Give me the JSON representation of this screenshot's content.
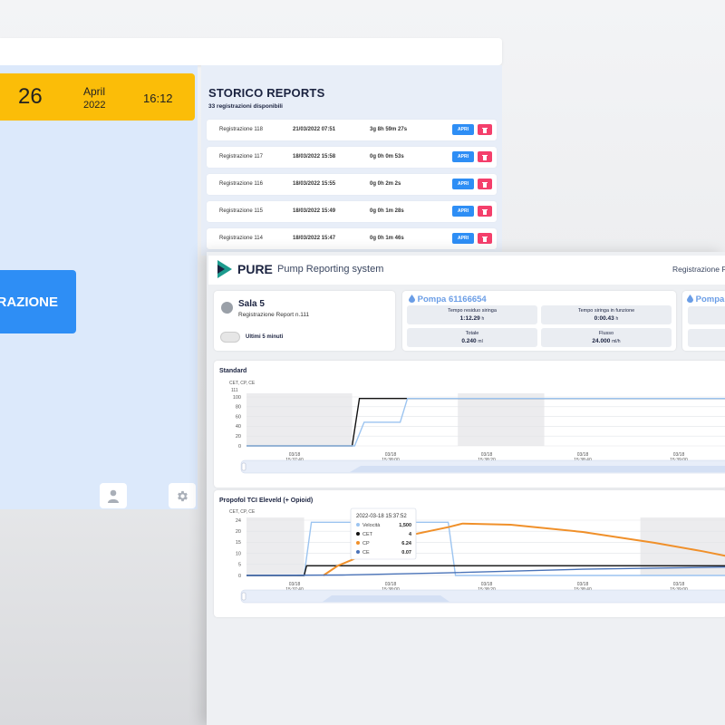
{
  "back": {
    "date": {
      "day": "26",
      "month": "April",
      "year": "2022",
      "time": "16:12"
    },
    "big_button_label": "RAZIONE",
    "reports": {
      "title": "STORICO REPORTS",
      "subtitle": "33 registrazioni disponibili",
      "open_label": "APRI",
      "rows": [
        {
          "name": "Registrazione 118",
          "date": "21/03/2022 07:51",
          "duration": "3g 8h 59m 27s"
        },
        {
          "name": "Registrazione 117",
          "date": "18/03/2022 15:58",
          "duration": "0g 0h 0m 53s"
        },
        {
          "name": "Registrazione 116",
          "date": "18/03/2022 15:55",
          "duration": "0g 0h 2m 2s"
        },
        {
          "name": "Registrazione 115",
          "date": "18/03/2022 15:49",
          "duration": "0g 0h 1m 28s"
        },
        {
          "name": "Registrazione 114",
          "date": "18/03/2022 15:47",
          "duration": "0g 0h 1m 46s"
        }
      ]
    }
  },
  "front": {
    "brand": "PURE",
    "brand_sub": "Pump Reporting system",
    "header_right": "Registrazione Re",
    "sala": {
      "title": "Sala 5",
      "subtitle": "Registrazione Report n.111",
      "toggle_label": "Ultimi 5 minuti"
    },
    "pump": {
      "title": "Pompa 61166654",
      "stats": [
        {
          "label": "Tempo residuo siringa",
          "value": "1:12.29",
          "unit": "h"
        },
        {
          "label": "Tempo siringa in funzione",
          "value": "0:00.43",
          "unit": "h"
        },
        {
          "label": "Totale",
          "value": "0.240",
          "unit": "ml"
        },
        {
          "label": "Flusso",
          "value": "24.000",
          "unit": "ml/h"
        }
      ]
    },
    "pump2_title": "Pompa",
    "colors": {
      "velocita": "#9cc4f0",
      "cet": "#111111",
      "cp": "#f0902a",
      "ce": "#4a73b8"
    }
  },
  "chart_data": [
    {
      "type": "line",
      "title": "Standard",
      "ylabel": "CET, CP, CE",
      "y_top_label": "111",
      "yticks": [
        "100",
        "80",
        "60",
        "40",
        "20",
        "0"
      ],
      "ylim": [
        0,
        111
      ],
      "xticks": [
        {
          "d": "03/18",
          "t": "15:37:40"
        },
        {
          "d": "03/18",
          "t": "15:38:00"
        },
        {
          "d": "03/18",
          "t": "15:38:20"
        },
        {
          "d": "03/18",
          "t": "15:38:40"
        },
        {
          "d": "03/18",
          "t": "15:39:00"
        }
      ],
      "series": [
        {
          "key": "cet",
          "points": [
            [
              0,
              0
            ],
            [
              0.22,
              0
            ],
            [
              0.235,
              100
            ],
            [
              1,
              100
            ]
          ]
        },
        {
          "key": "velocita",
          "points": [
            [
              0,
              0
            ],
            [
              0.225,
              0
            ],
            [
              0.245,
              50
            ],
            [
              0.32,
              50
            ],
            [
              0.335,
              100
            ],
            [
              1,
              100
            ]
          ]
        }
      ]
    },
    {
      "type": "line",
      "title": "Propofol TCI Eleveld (+ Opioid)",
      "ylabel": "CET, CP, CE",
      "yticks": [
        "24",
        "20",
        "15",
        "10",
        "5",
        "0"
      ],
      "ylim": [
        0,
        24
      ],
      "xticks": [
        {
          "d": "03/18",
          "t": "15:37:40"
        },
        {
          "d": "03/18",
          "t": "15:38:00"
        },
        {
          "d": "03/18",
          "t": "15:38:20"
        },
        {
          "d": "03/18",
          "t": "15:38:40"
        },
        {
          "d": "03/18",
          "t": "15:39:00"
        }
      ],
      "tooltip": {
        "title": "2022-03-18 15:37:52",
        "items": [
          {
            "key": "velocita",
            "label": "Velocità",
            "value": "1,500"
          },
          {
            "key": "cet",
            "label": "CET",
            "value": "4"
          },
          {
            "key": "cp",
            "label": "CP",
            "value": "6.24"
          },
          {
            "key": "ce",
            "label": "CE",
            "value": "0.07"
          }
        ]
      },
      "series": [
        {
          "key": "velocita",
          "points": [
            [
              0,
              0
            ],
            [
              0.12,
              0
            ],
            [
              0.135,
              22
            ],
            [
              0.42,
              22
            ],
            [
              0.435,
              0
            ],
            [
              1,
              0
            ]
          ]
        },
        {
          "key": "cet",
          "points": [
            [
              0,
              0
            ],
            [
              0.12,
              0
            ],
            [
              0.125,
              4
            ],
            [
              1,
              4
            ]
          ]
        },
        {
          "key": "cp",
          "points": [
            [
              0.16,
              0
            ],
            [
              0.19,
              4
            ],
            [
              0.22,
              6.5
            ],
            [
              0.3,
              15
            ],
            [
              0.42,
              20
            ],
            [
              0.45,
              21.5
            ],
            [
              0.55,
              21
            ],
            [
              0.7,
              18
            ],
            [
              0.85,
              13.5
            ],
            [
              0.95,
              10
            ],
            [
              1,
              8
            ]
          ]
        },
        {
          "key": "ce",
          "points": [
            [
              0,
              0
            ],
            [
              0.2,
              0.2
            ],
            [
              0.4,
              1
            ],
            [
              0.7,
              2.6
            ],
            [
              1,
              3.5
            ]
          ]
        }
      ]
    }
  ]
}
